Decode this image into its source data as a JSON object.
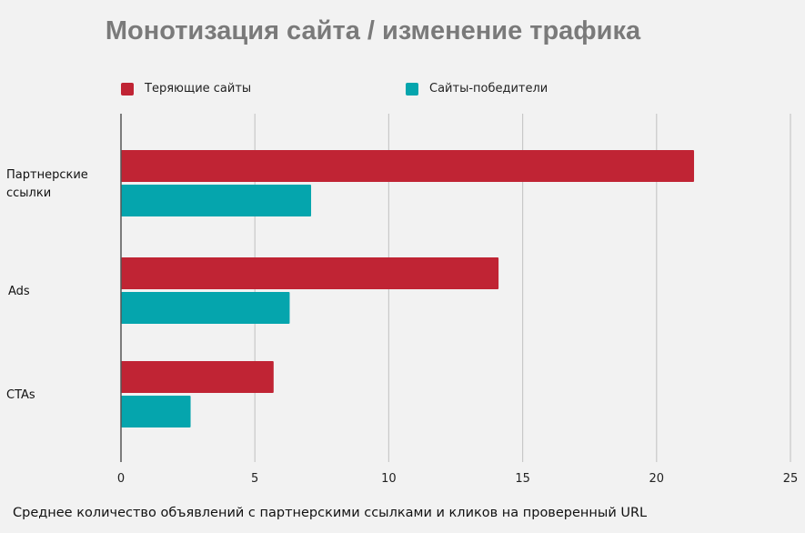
{
  "chart_data": {
    "type": "bar",
    "orientation": "horizontal",
    "title": "Монотизация сайта / изменение трафика",
    "xlabel": "Среднее количество объявлений с партнерскими ссылками и кликов на проверенный URL",
    "ylabel": "",
    "categories": [
      "Партнерские ссылки",
      "Ads",
      "CTAs"
    ],
    "series": [
      {
        "name": "Теряющие сайты",
        "color": "#c02434",
        "values": [
          21.4,
          14.1,
          5.7
        ]
      },
      {
        "name": "Сайты-победители",
        "color": "#05a5ad",
        "values": [
          7.1,
          6.3,
          2.6
        ]
      }
    ],
    "xlim": [
      0,
      25
    ],
    "xticks": [
      "0",
      "5",
      "10",
      "15",
      "20",
      "25"
    ],
    "grid": true,
    "legend_position": "top"
  }
}
